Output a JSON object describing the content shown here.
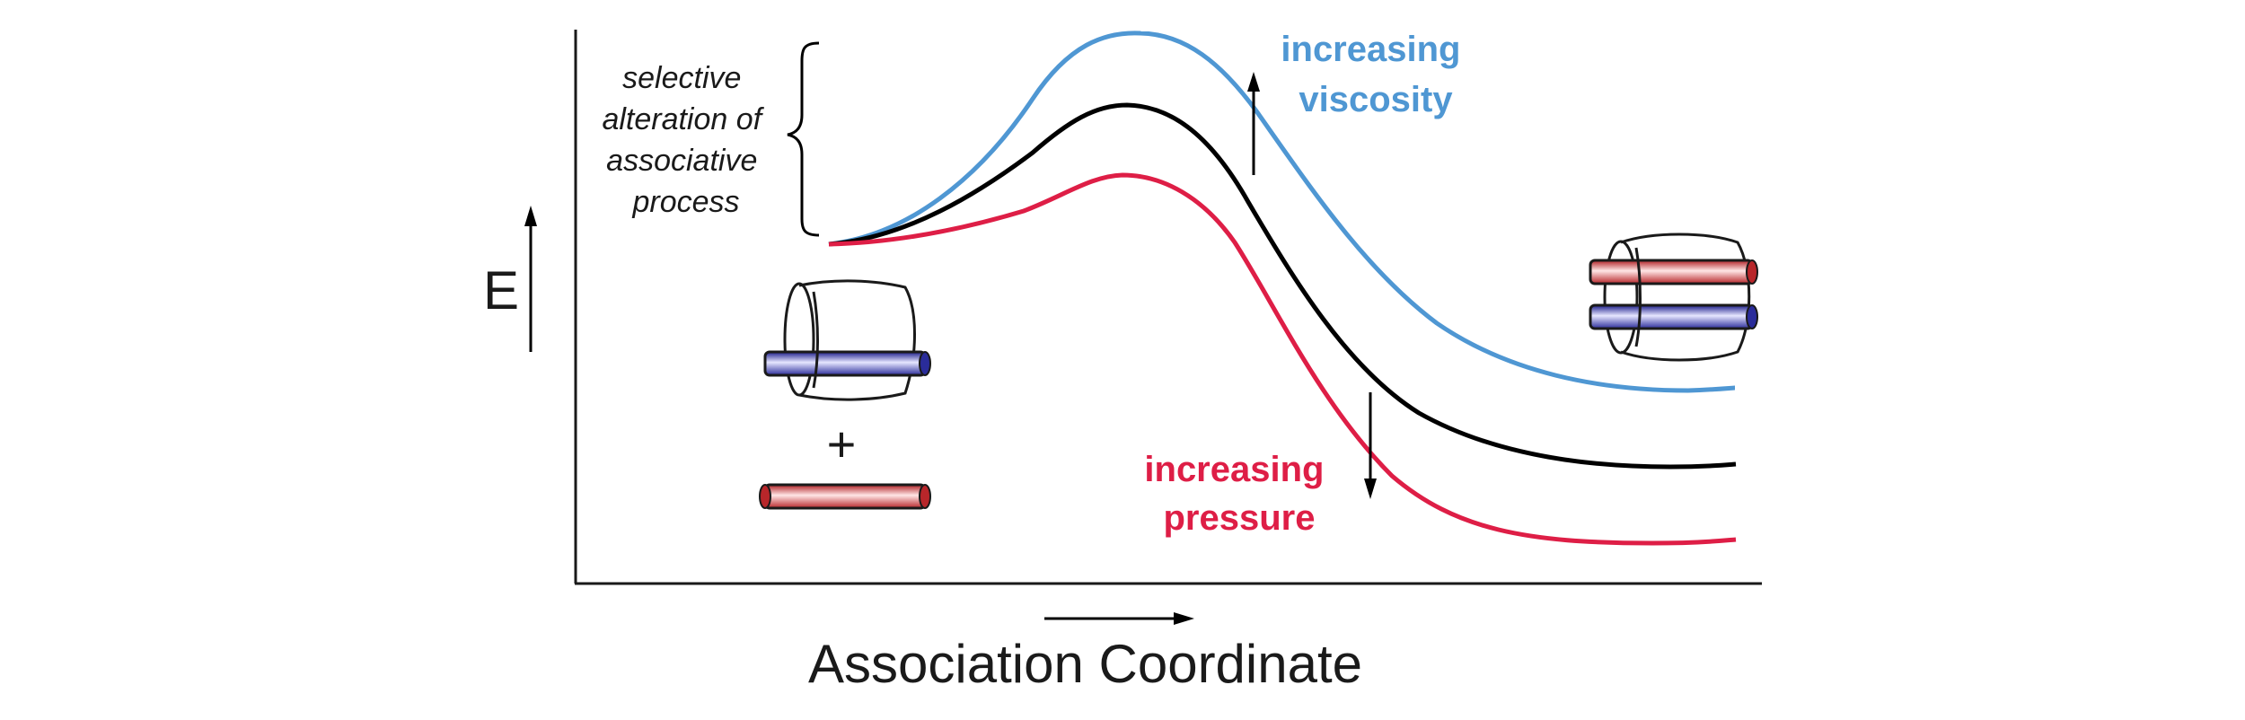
{
  "axes": {
    "y_label": "E",
    "x_label": "Association Coordinate"
  },
  "annotations": {
    "bracket_text": [
      "selective",
      "alteration of",
      "associative",
      "process"
    ],
    "viscosity_text": [
      "increasing",
      "viscosity"
    ],
    "pressure_text": [
      "increasing",
      "pressure"
    ],
    "plus_sign": "+"
  },
  "curves": [
    {
      "id": "viscosity",
      "color": "#4f97d3"
    },
    {
      "id": "baseline",
      "color": "#000000"
    },
    {
      "id": "pressure",
      "color": "#de1e46"
    }
  ],
  "colors": {
    "viscosity": "#4f97d3",
    "pressure": "#de1e46",
    "rod_blue": "#2b2d9c",
    "rod_red": "#c0282b",
    "axis": "#1a1a1a"
  },
  "icons": {
    "reactant_complex": "ring-with-blue-rod-icon",
    "free_rod": "red-rod-icon",
    "product_complex": "ring-with-two-rods-icon"
  }
}
